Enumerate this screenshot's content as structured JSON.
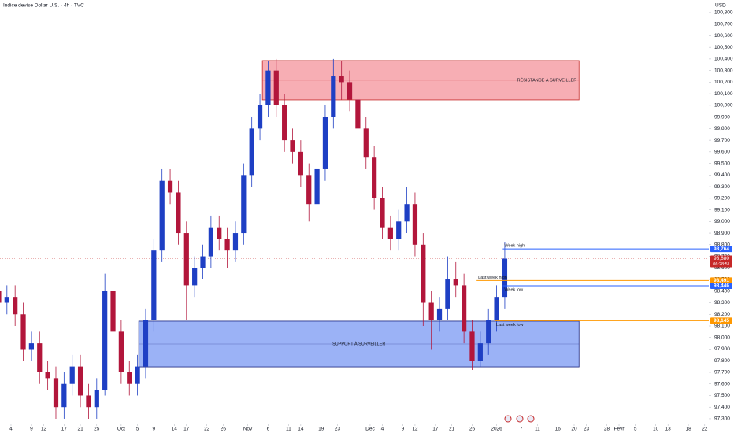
{
  "chart_data": {
    "type": "candlestick",
    "title": "Indice devise Dollar U.S. · 4h · TVC",
    "currency": "USD",
    "up_color": "#1e3fc4",
    "down_color": "#b2163b",
    "x": [
      0,
      2,
      4,
      6,
      8,
      10,
      12,
      14,
      16,
      18,
      20,
      22,
      24,
      26,
      28,
      30,
      32,
      34,
      36,
      38,
      40,
      42,
      44,
      46,
      48,
      50,
      52,
      54,
      56,
      58,
      60,
      62,
      64,
      66,
      68,
      70,
      72,
      74,
      76,
      78,
      80,
      82,
      84,
      86,
      88,
      90,
      92,
      94,
      96,
      98,
      100,
      102,
      104,
      106,
      108,
      110,
      112,
      114,
      116,
      118,
      120,
      122,
      124
    ],
    "open": [
      98400,
      98300,
      98350,
      98200,
      97900,
      97950,
      97700,
      97650,
      97400,
      97600,
      97750,
      97500,
      97400,
      97550,
      98400,
      98050,
      97700,
      97600,
      97750,
      98150,
      98750,
      99350,
      99250,
      98900,
      98450,
      98600,
      98700,
      98950,
      98850,
      98750,
      98900,
      99400,
      99800,
      100000,
      100300,
      100000,
      99700,
      99600,
      99400,
      99150,
      99450,
      99900,
      100250,
      100200,
      100050,
      99800,
      99550,
      99200,
      98950,
      98850,
      99000,
      99150,
      98800,
      98300,
      98150,
      98250,
      98500,
      98450,
      98050,
      97800,
      97950,
      98150,
      98350
    ],
    "high": [
      98500,
      98450,
      98450,
      98300,
      98050,
      98050,
      97800,
      97750,
      97700,
      97850,
      97850,
      97600,
      97650,
      98550,
      98500,
      98150,
      97800,
      97850,
      98250,
      98850,
      99450,
      99450,
      99350,
      99000,
      98700,
      98800,
      99050,
      99050,
      98950,
      99000,
      99500,
      99900,
      100100,
      100380,
      100400,
      100100,
      99800,
      99700,
      99500,
      99550,
      100000,
      100400,
      100380,
      100300,
      100150,
      99900,
      99650,
      99300,
      99050,
      99100,
      99300,
      99250,
      98900,
      98400,
      98350,
      98700,
      98650,
      98550,
      98150,
      98050,
      98250,
      98450,
      98820
    ],
    "low": [
      98200,
      98200,
      98100,
      97800,
      97800,
      97600,
      97550,
      97300,
      97300,
      97500,
      97400,
      97300,
      97300,
      97500,
      97950,
      97600,
      97500,
      97500,
      97650,
      98050,
      98650,
      99150,
      98800,
      98150,
      98350,
      98500,
      98600,
      98750,
      98600,
      98650,
      98800,
      99300,
      99700,
      99900,
      99900,
      99600,
      99500,
      99300,
      99000,
      99050,
      99350,
      99800,
      100050,
      99950,
      99700,
      99450,
      99100,
      98850,
      98750,
      98750,
      98900,
      98700,
      98100,
      97900,
      98050,
      98150,
      98350,
      97950,
      97720,
      97750,
      97850,
      98050,
      98250
    ],
    "close": [
      98300,
      98350,
      98200,
      97900,
      97950,
      97700,
      97650,
      97400,
      97600,
      97750,
      97500,
      97400,
      97550,
      98400,
      98050,
      97700,
      97600,
      97750,
      98150,
      98750,
      99350,
      99250,
      98900,
      98450,
      98600,
      98700,
      98950,
      98850,
      98750,
      98900,
      99400,
      99800,
      100000,
      100300,
      100000,
      99700,
      99600,
      99400,
      99150,
      99450,
      99900,
      100250,
      100200,
      100050,
      99800,
      99550,
      99200,
      98950,
      98850,
      99000,
      99150,
      98800,
      98300,
      98150,
      98250,
      98500,
      98450,
      98050,
      97800,
      97950,
      98150,
      98350,
      98680
    ],
    "xlim": [
      0.3,
      174
    ],
    "ylim": [
      97259,
      100908
    ],
    "xticks": [
      {
        "value": 3,
        "label": "4"
      },
      {
        "value": 8,
        "label": "9"
      },
      {
        "value": 11,
        "label": "12"
      },
      {
        "value": 16,
        "label": "17"
      },
      {
        "value": 20,
        "label": "21"
      },
      {
        "value": 24,
        "label": "25"
      },
      {
        "value": 30,
        "label": "Oct"
      },
      {
        "value": 34,
        "label": "5"
      },
      {
        "value": 38,
        "label": "9"
      },
      {
        "value": 43,
        "label": "14"
      },
      {
        "value": 46,
        "label": "17"
      },
      {
        "value": 51,
        "label": "22"
      },
      {
        "value": 55,
        "label": "26"
      },
      {
        "value": 61,
        "label": "Nov"
      },
      {
        "value": 66,
        "label": "6"
      },
      {
        "value": 71,
        "label": "11"
      },
      {
        "value": 74,
        "label": "14"
      },
      {
        "value": 79,
        "label": "19"
      },
      {
        "value": 83,
        "label": "23"
      },
      {
        "value": 91,
        "label": "Déc"
      },
      {
        "value": 94,
        "label": "4"
      },
      {
        "value": 99,
        "label": "9"
      },
      {
        "value": 102,
        "label": "12"
      },
      {
        "value": 107,
        "label": "17"
      },
      {
        "value": 111,
        "label": "21"
      },
      {
        "value": 116,
        "label": "26"
      },
      {
        "value": 122,
        "label": "2026"
      },
      {
        "value": 128,
        "label": "7"
      },
      {
        "value": 132,
        "label": "11"
      },
      {
        "value": 137,
        "label": "16"
      },
      {
        "value": 141,
        "label": "20"
      },
      {
        "value": 144,
        "label": "23"
      },
      {
        "value": 149,
        "label": "28"
      },
      {
        "value": 152,
        "label": "Févr"
      },
      {
        "value": 156,
        "label": "5"
      },
      {
        "value": 161,
        "label": "10"
      },
      {
        "value": 164,
        "label": "13"
      },
      {
        "value": 169,
        "label": "18"
      },
      {
        "value": 173,
        "label": "22"
      }
    ],
    "yticks": [
      {
        "value": 97300,
        "label": "97,300"
      },
      {
        "value": 97400,
        "label": "97,400"
      },
      {
        "value": 97500,
        "label": "97,500"
      },
      {
        "value": 97600,
        "label": "97,600"
      },
      {
        "value": 97700,
        "label": "97,700"
      },
      {
        "value": 97800,
        "label": "97,800"
      },
      {
        "value": 97900,
        "label": "97,900"
      },
      {
        "value": 98000,
        "label": "98,000"
      },
      {
        "value": 98100,
        "label": "98,100"
      },
      {
        "value": 98200,
        "label": "98,200"
      },
      {
        "value": 98300,
        "label": "98,300"
      },
      {
        "value": 98400,
        "label": "98,400"
      },
      {
        "value": 98500,
        "label": "98,500"
      },
      {
        "value": 98600,
        "label": "98,600"
      },
      {
        "value": 98700,
        "label": "98,700"
      },
      {
        "value": 98800,
        "label": "98,800"
      },
      {
        "value": 98900,
        "label": "98,900"
      },
      {
        "value": 99000,
        "label": "99,000"
      },
      {
        "value": 99100,
        "label": "99,100"
      },
      {
        "value": 99200,
        "label": "99,200"
      },
      {
        "value": 99300,
        "label": "99,300"
      },
      {
        "value": 99400,
        "label": "99,400"
      },
      {
        "value": 99500,
        "label": "99,500"
      },
      {
        "value": 99600,
        "label": "99,600"
      },
      {
        "value": 99700,
        "label": "99,700"
      },
      {
        "value": 99800,
        "label": "99,800"
      },
      {
        "value": 99900,
        "label": "99,900"
      },
      {
        "value": 100000,
        "label": "100,000"
      },
      {
        "value": 100100,
        "label": "100,100"
      },
      {
        "value": 100200,
        "label": "100,200"
      },
      {
        "value": 100300,
        "label": "100,300"
      },
      {
        "value": 100400,
        "label": "100,400"
      },
      {
        "value": 100500,
        "label": "100,500"
      },
      {
        "value": 100600,
        "label": "100,600"
      },
      {
        "value": 100700,
        "label": "100,700"
      },
      {
        "value": 100800,
        "label": "100,800"
      }
    ],
    "zones": [
      {
        "label": "RÉSISTANCE À SURVEILLER",
        "x0": 64.6,
        "x1": 142.2,
        "y0": 100047,
        "y1": 100386,
        "color": "#f6a0a7",
        "border": "#c62828"
      },
      {
        "label": "SUPPORT À SURVEILLER",
        "x0": 34.3,
        "x1": 142.2,
        "y0": 97747,
        "y1": 98141,
        "color": "#8aa5f4",
        "border": "#1a237e"
      }
    ],
    "levels": [
      {
        "name": "Week high",
        "value": 98764,
        "value_label": "98,764",
        "x0": 123.5,
        "color": "#2962ff",
        "label_side": "above"
      },
      {
        "name": "Last week high",
        "value": 98491,
        "value_label": "98,491",
        "x0": 117.1,
        "color": "#ff9800",
        "label_side": "above"
      },
      {
        "name": "Week low",
        "value": 98446,
        "value_label": "98,446",
        "x0": 123.5,
        "color": "#2962ff",
        "label_side": "below"
      },
      {
        "name": "Last week low",
        "value": 98145,
        "value_label": "98,145",
        "x0": 121.5,
        "color": "#ff9800",
        "label_side": "below"
      }
    ],
    "last_price": {
      "value": 98680,
      "label": "98,680",
      "countdown": "06:28:51",
      "color": "#c62828"
    }
  }
}
